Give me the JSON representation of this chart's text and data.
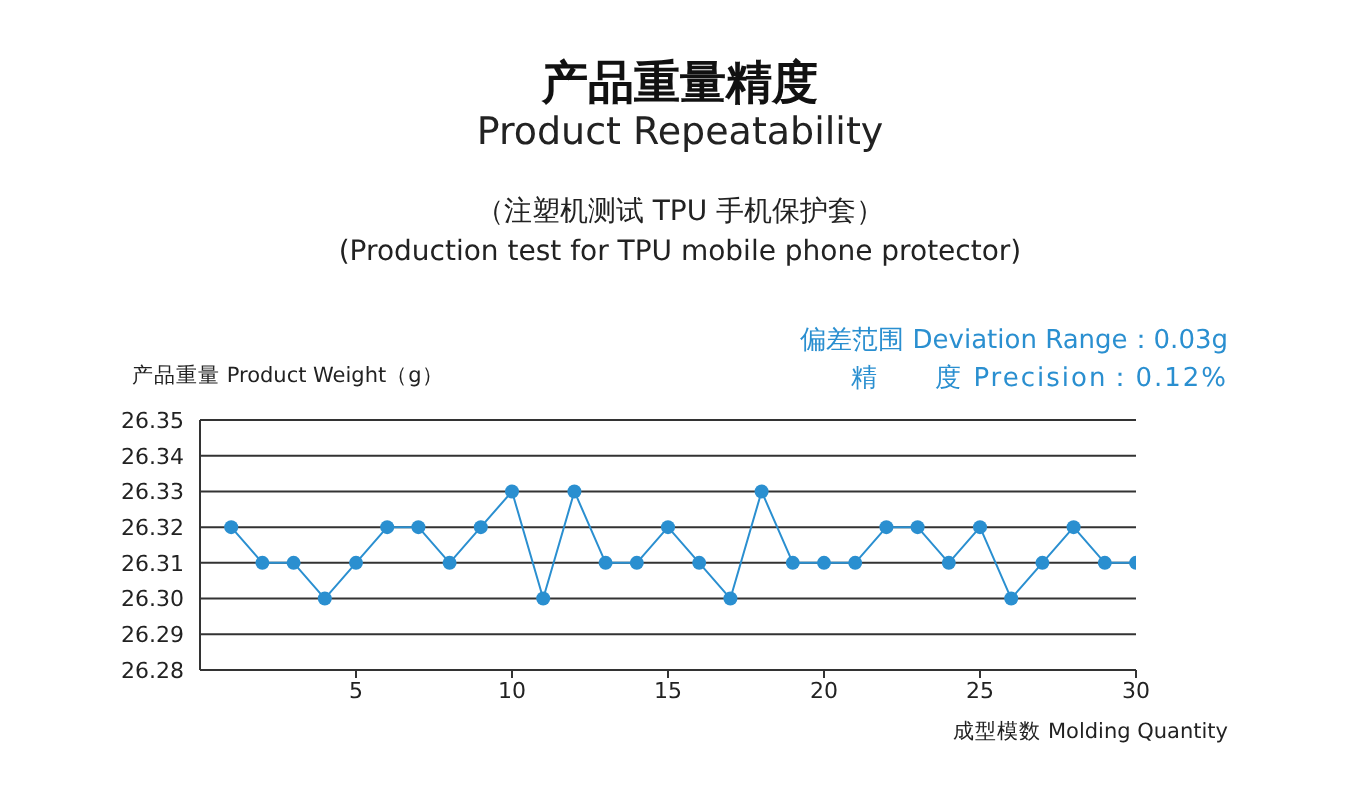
{
  "chart_data": {
    "type": "line",
    "title": "产品重量精度",
    "subtitle": "Product Repeatability",
    "annotations": [
      "（注塑机测试 TPU 手机保护套）",
      "(Production test for TPU mobile phone protector)",
      "偏差范围 Deviation Range：0.03g",
      "精　　度 Precision：0.12%"
    ],
    "xlabel": "成型模数 Molding Quantity",
    "ylabel": "产品重量 Product Weight（g）",
    "x": [
      1,
      2,
      3,
      4,
      5,
      6,
      7,
      8,
      9,
      10,
      11,
      12,
      13,
      14,
      15,
      16,
      17,
      18,
      19,
      20,
      21,
      22,
      23,
      24,
      25,
      26,
      27,
      28,
      29,
      30
    ],
    "series": [
      {
        "color": "#2a8fd0",
        "values": [
          26.32,
          26.31,
          26.31,
          26.3,
          26.31,
          26.32,
          26.32,
          26.31,
          26.32,
          26.33,
          26.3,
          26.33,
          26.31,
          26.31,
          26.32,
          26.31,
          26.3,
          26.33,
          26.31,
          26.31,
          26.31,
          26.32,
          26.32,
          26.31,
          26.32,
          26.3,
          26.31,
          26.32,
          26.31,
          26.31
        ]
      }
    ],
    "xlim": [
      0,
      30
    ],
    "xticks": [
      5,
      10,
      15,
      20,
      25,
      30
    ],
    "ylim": [
      26.28,
      26.35
    ],
    "yticks": [
      26.28,
      26.29,
      {
        "value": 26.3,
        "label": "26.30"
      },
      26.31,
      26.32,
      26.33,
      26.34,
      26.35
    ],
    "grid": "y",
    "legend": false,
    "marker": "circle",
    "line_style": "solid"
  }
}
